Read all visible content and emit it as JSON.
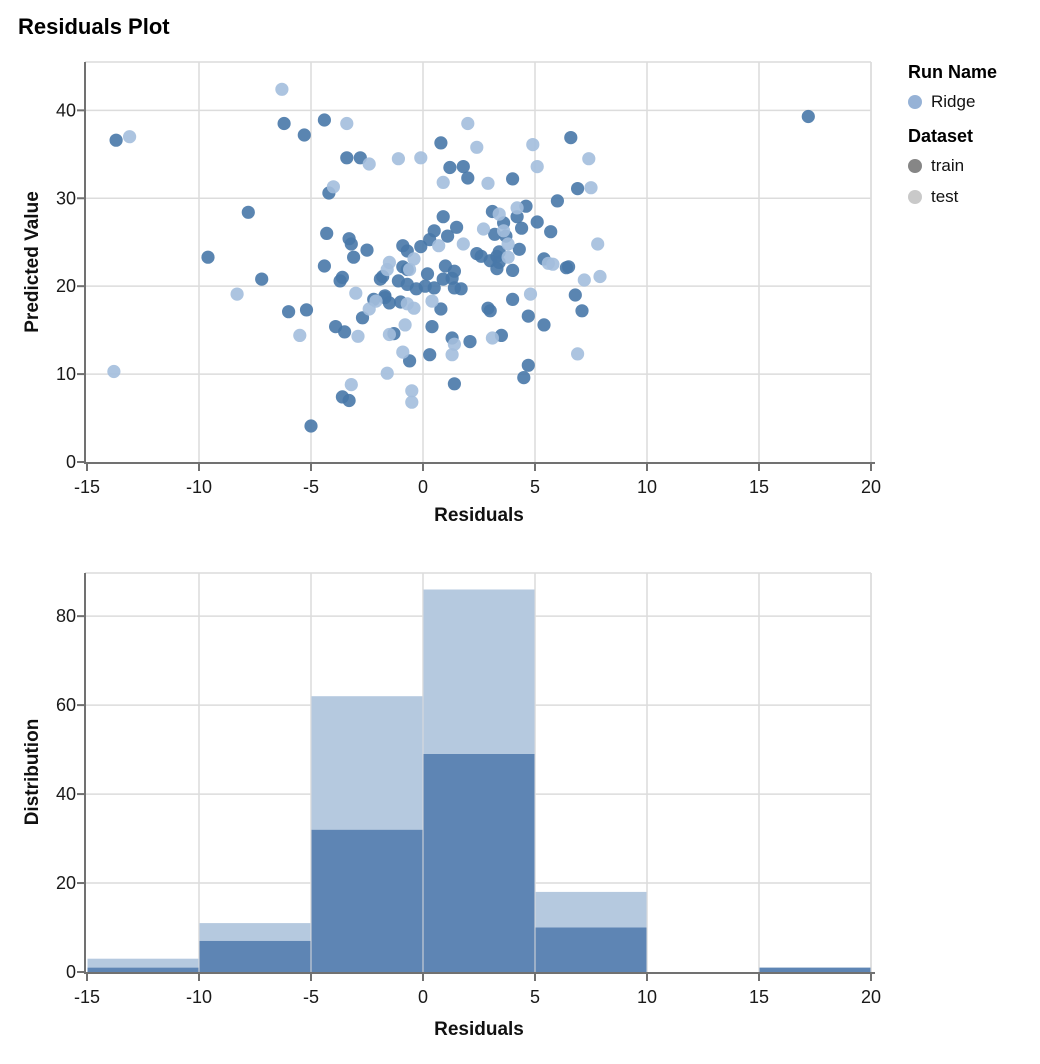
{
  "title": "Residuals Plot",
  "colors": {
    "train_point": "#4878a8",
    "test_point": "#a3bedd",
    "train_bar": "#5e85b4",
    "test_bar": "#b5c9df",
    "gridline": "#dcdcdc",
    "axis": "#717171",
    "text": "#1a1a1a"
  },
  "legend": {
    "run_name_label": "Run Name",
    "runs": [
      {
        "label": "Ridge",
        "color": "#96b2d6"
      }
    ],
    "dataset_label": "Dataset",
    "datasets": [
      {
        "label": "train",
        "color": "#868686"
      },
      {
        "label": "test",
        "color": "#c9c9c9"
      }
    ]
  },
  "chart_data": [
    {
      "type": "scatter",
      "title": "Residuals Plot",
      "xlabel": "Residuals",
      "ylabel": "Predicted Value",
      "xlim": [
        -15,
        20
      ],
      "ylim": [
        0,
        45.5
      ],
      "x_ticks": [
        -15,
        -10,
        -5,
        0,
        5,
        10,
        15,
        20
      ],
      "y_ticks": [
        0,
        10,
        20,
        30,
        40
      ],
      "grid": true,
      "legend_position": "right",
      "series": [
        {
          "name": "Ridge-train",
          "dataset": "train",
          "color": "#4878a8",
          "points": [
            [
              -13.7,
              36.6
            ],
            [
              -9.6,
              23.3
            ],
            [
              -7.8,
              28.4
            ],
            [
              -7.2,
              20.8
            ],
            [
              -6.2,
              38.5
            ],
            [
              -6.0,
              17.1
            ],
            [
              -5.3,
              37.2
            ],
            [
              -5.2,
              17.3
            ],
            [
              -5.0,
              4.1
            ],
            [
              -4.4,
              38.9
            ],
            [
              -4.4,
              22.3
            ],
            [
              -4.3,
              26.0
            ],
            [
              -4.2,
              30.6
            ],
            [
              -3.9,
              15.4
            ],
            [
              -3.7,
              20.6
            ],
            [
              -3.6,
              21.0
            ],
            [
              -3.6,
              7.4
            ],
            [
              -3.5,
              14.8
            ],
            [
              -3.4,
              34.6
            ],
            [
              -3.3,
              25.4
            ],
            [
              -3.3,
              7.0
            ],
            [
              -3.2,
              24.8
            ],
            [
              -3.1,
              23.3
            ],
            [
              -2.8,
              34.6
            ],
            [
              -2.7,
              16.4
            ],
            [
              -2.5,
              24.1
            ],
            [
              -2.2,
              18.5
            ],
            [
              -1.9,
              20.8
            ],
            [
              -1.8,
              21.1
            ],
            [
              -1.7,
              18.9
            ],
            [
              -1.7,
              18.7
            ],
            [
              -1.5,
              18.1
            ],
            [
              -1.3,
              14.6
            ],
            [
              -1.1,
              20.6
            ],
            [
              -1.0,
              18.2
            ],
            [
              -0.9,
              24.6
            ],
            [
              -0.9,
              22.2
            ],
            [
              -0.7,
              24.0
            ],
            [
              -0.7,
              21.9
            ],
            [
              -0.7,
              20.2
            ],
            [
              -0.6,
              11.5
            ],
            [
              -0.3,
              19.7
            ],
            [
              -0.1,
              24.5
            ],
            [
              0.1,
              20.0
            ],
            [
              0.2,
              21.4
            ],
            [
              0.3,
              25.3
            ],
            [
              0.3,
              12.2
            ],
            [
              0.4,
              15.4
            ],
            [
              0.5,
              26.3
            ],
            [
              0.5,
              19.8
            ],
            [
              0.8,
              36.3
            ],
            [
              0.8,
              17.4
            ],
            [
              0.9,
              27.9
            ],
            [
              0.9,
              20.8
            ],
            [
              1.0,
              22.3
            ],
            [
              1.1,
              25.7
            ],
            [
              1.2,
              33.5
            ],
            [
              1.3,
              20.9
            ],
            [
              1.3,
              14.1
            ],
            [
              1.4,
              21.7
            ],
            [
              1.4,
              19.8
            ],
            [
              1.4,
              8.9
            ],
            [
              1.5,
              26.7
            ],
            [
              1.7,
              19.7
            ],
            [
              1.8,
              33.6
            ],
            [
              2.0,
              32.3
            ],
            [
              2.1,
              13.7
            ],
            [
              2.4,
              23.7
            ],
            [
              2.6,
              23.4
            ],
            [
              2.9,
              17.5
            ],
            [
              3.0,
              22.9
            ],
            [
              3.0,
              17.2
            ],
            [
              3.1,
              28.5
            ],
            [
              3.2,
              25.9
            ],
            [
              3.3,
              23.4
            ],
            [
              3.3,
              22.0
            ],
            [
              3.4,
              23.9
            ],
            [
              3.4,
              22.7
            ],
            [
              3.5,
              14.4
            ],
            [
              3.6,
              27.2
            ],
            [
              3.7,
              25.7
            ],
            [
              4.0,
              32.2
            ],
            [
              4.0,
              21.8
            ],
            [
              4.0,
              18.5
            ],
            [
              4.2,
              27.9
            ],
            [
              4.3,
              24.2
            ],
            [
              4.4,
              26.6
            ],
            [
              4.5,
              9.6
            ],
            [
              4.6,
              29.1
            ],
            [
              4.7,
              16.6
            ],
            [
              4.7,
              11.0
            ],
            [
              5.1,
              27.3
            ],
            [
              5.4,
              23.1
            ],
            [
              5.4,
              15.6
            ],
            [
              5.7,
              26.2
            ],
            [
              6.0,
              29.7
            ],
            [
              6.4,
              22.1
            ],
            [
              6.5,
              22.2
            ],
            [
              6.6,
              36.9
            ],
            [
              6.8,
              19.0
            ],
            [
              6.9,
              31.1
            ],
            [
              7.1,
              17.2
            ],
            [
              17.2,
              39.3
            ]
          ]
        },
        {
          "name": "Ridge-test",
          "dataset": "test",
          "color": "#a3bedd",
          "points": [
            [
              -13.8,
              10.3
            ],
            [
              -13.1,
              37.0
            ],
            [
              -8.3,
              19.1
            ],
            [
              -6.3,
              42.4
            ],
            [
              -5.5,
              14.4
            ],
            [
              -4.0,
              31.3
            ],
            [
              -3.4,
              38.5
            ],
            [
              -3.2,
              8.8
            ],
            [
              -3.0,
              19.2
            ],
            [
              -2.9,
              14.3
            ],
            [
              -2.4,
              33.9
            ],
            [
              -2.4,
              17.4
            ],
            [
              -2.1,
              18.3
            ],
            [
              -1.6,
              21.9
            ],
            [
              -1.6,
              10.1
            ],
            [
              -1.5,
              22.7
            ],
            [
              -1.5,
              14.5
            ],
            [
              -1.1,
              34.5
            ],
            [
              -0.9,
              12.5
            ],
            [
              -0.8,
              15.6
            ],
            [
              -0.7,
              18.0
            ],
            [
              -0.6,
              21.9
            ],
            [
              -0.5,
              8.1
            ],
            [
              -0.5,
              6.8
            ],
            [
              -0.4,
              23.1
            ],
            [
              -0.4,
              17.5
            ],
            [
              -0.1,
              34.6
            ],
            [
              0.4,
              18.3
            ],
            [
              0.7,
              24.6
            ],
            [
              0.9,
              31.8
            ],
            [
              1.3,
              12.2
            ],
            [
              1.4,
              13.4
            ],
            [
              1.8,
              24.8
            ],
            [
              2.0,
              38.5
            ],
            [
              2.4,
              35.8
            ],
            [
              2.7,
              26.5
            ],
            [
              2.9,
              31.7
            ],
            [
              3.1,
              14.1
            ],
            [
              3.4,
              28.2
            ],
            [
              3.6,
              26.3
            ],
            [
              3.8,
              24.8
            ],
            [
              3.8,
              23.3
            ],
            [
              4.2,
              28.9
            ],
            [
              4.8,
              19.1
            ],
            [
              4.9,
              36.1
            ],
            [
              5.1,
              33.6
            ],
            [
              5.6,
              22.6
            ],
            [
              5.8,
              22.5
            ],
            [
              6.9,
              12.3
            ],
            [
              7.2,
              20.7
            ],
            [
              7.4,
              34.5
            ],
            [
              7.5,
              31.2
            ],
            [
              7.8,
              24.8
            ],
            [
              7.9,
              21.1
            ]
          ]
        }
      ]
    },
    {
      "type": "bar",
      "stacked": true,
      "xlabel": "Residuals",
      "ylabel": "Distribution",
      "xlim": [
        -15,
        20
      ],
      "ylim": [
        0,
        89.7
      ],
      "x_ticks": [
        -15,
        -10,
        -5,
        0,
        5,
        10,
        15,
        20
      ],
      "y_ticks": [
        0,
        20,
        40,
        60,
        80
      ],
      "grid": true,
      "bin_edges": [
        -15,
        -10,
        -5,
        0,
        5,
        10,
        15,
        20
      ],
      "series": [
        {
          "name": "train",
          "color": "#5e85b4",
          "values": [
            1,
            7,
            32,
            49,
            10,
            0,
            1
          ]
        },
        {
          "name": "test",
          "color": "#b5c9df",
          "values": [
            2,
            4,
            30,
            37,
            8,
            0,
            0
          ]
        }
      ]
    }
  ]
}
